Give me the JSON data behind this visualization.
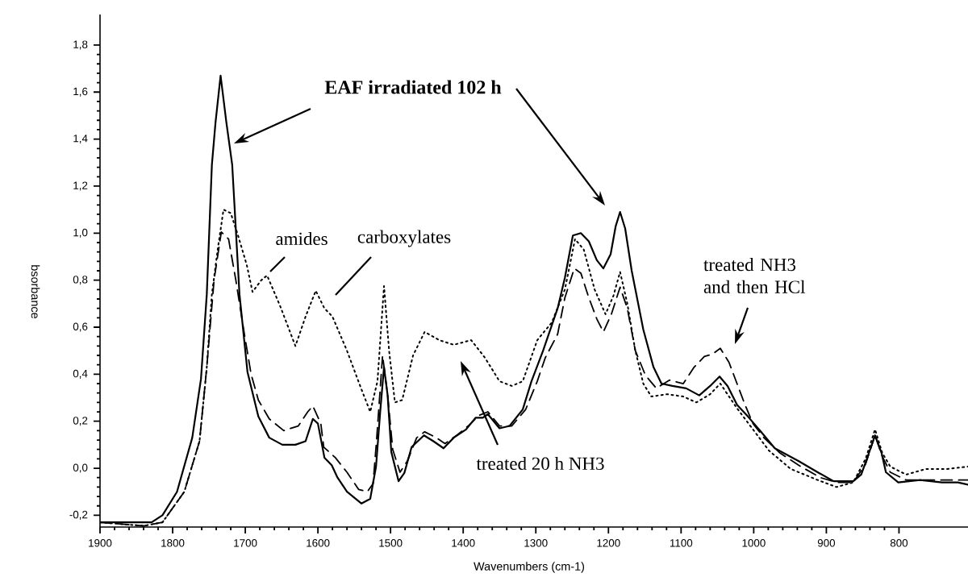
{
  "chart_data": {
    "type": "line",
    "xlabel": "Wavenumbers (cm-1)",
    "ylabel": "bsorbance",
    "annotations": [
      "EAF irradiated 102 h",
      "amides",
      "carboxylates",
      "treated 20 h NH3",
      "treated NH3 and then HCl"
    ],
    "xlim": [
      1900,
      705
    ],
    "xticks": [
      1900,
      1800,
      1700,
      1600,
      1500,
      1400,
      1300,
      1200,
      1100,
      1000,
      900,
      800
    ],
    "ylim": [
      -0.25,
      1.93
    ],
    "yticks": [
      {
        "value": -0.2,
        "label": "-0,2"
      },
      {
        "value": 0,
        "label": "0,0"
      },
      {
        "value": 0.2,
        "label": "0,2"
      },
      {
        "value": 0.4,
        "label": "0,4"
      },
      {
        "value": 0.6,
        "label": "0,6"
      },
      {
        "value": 0.8,
        "label": "0,8"
      },
      {
        "value": 1.0,
        "label": "1,0"
      },
      {
        "value": 1.2,
        "label": "1,2"
      },
      {
        "value": 1.4,
        "label": "1,4"
      },
      {
        "value": 1.6,
        "label": "1,6"
      },
      {
        "value": 1.8,
        "label": "1,8"
      }
    ],
    "series": [
      {
        "color": "#000000",
        "line_style": "solid",
        "x": [
          1900,
          1829,
          1814,
          1794,
          1773,
          1761,
          1753,
          1746,
          1741,
          1734,
          1726,
          1718,
          1708,
          1697,
          1682,
          1667,
          1649,
          1631,
          1617,
          1607,
          1600,
          1591,
          1581,
          1573,
          1560,
          1540,
          1528,
          1520,
          1514,
          1509,
          1504,
          1499,
          1489,
          1481,
          1471,
          1454,
          1441,
          1427,
          1413,
          1396,
          1383,
          1373,
          1366,
          1350,
          1336,
          1318,
          1306,
          1290,
          1270,
          1260,
          1249,
          1238,
          1227,
          1216,
          1207,
          1197,
          1190,
          1184,
          1177,
          1168,
          1152,
          1138,
          1127,
          1112,
          1093,
          1075,
          1060,
          1047,
          1036,
          1023,
          1008,
          990,
          971,
          938,
          912,
          890,
          863,
          852,
          843,
          833,
          824,
          818,
          801,
          771,
          741,
          719,
          705
        ],
        "values": [
          -0.23,
          -0.23,
          -0.2,
          -0.1,
          0.13,
          0.38,
          0.74,
          1.29,
          1.47,
          1.67,
          1.47,
          1.29,
          0.74,
          0.41,
          0.22,
          0.13,
          0.1,
          0.1,
          0.115,
          0.21,
          0.19,
          0.045,
          0.013,
          -0.04,
          -0.1,
          -0.15,
          -0.13,
          0.007,
          0.25,
          0.43,
          0.31,
          0.07,
          -0.055,
          -0.02,
          0.09,
          0.14,
          0.115,
          0.085,
          0.13,
          0.165,
          0.215,
          0.215,
          0.23,
          0.17,
          0.18,
          0.25,
          0.37,
          0.5,
          0.68,
          0.81,
          0.99,
          1.0,
          0.965,
          0.885,
          0.85,
          0.91,
          1.03,
          1.09,
          1.02,
          0.84,
          0.59,
          0.43,
          0.36,
          0.35,
          0.34,
          0.31,
          0.35,
          0.39,
          0.35,
          0.27,
          0.22,
          0.155,
          0.085,
          0.03,
          -0.017,
          -0.055,
          -0.055,
          -0.027,
          0.05,
          0.14,
          0.065,
          -0.017,
          -0.06,
          -0.05,
          -0.06,
          -0.06,
          -0.07
        ]
      },
      {
        "color": "#000000",
        "line_style": "dotted",
        "x": [
          1900,
          1840,
          1814,
          1784,
          1763,
          1753,
          1746,
          1738,
          1730,
          1720,
          1710,
          1698,
          1690,
          1678,
          1670,
          1652,
          1631,
          1617,
          1603,
          1591,
          1580,
          1560,
          1540,
          1528,
          1518,
          1509,
          1502,
          1494,
          1484,
          1469,
          1453,
          1433,
          1413,
          1389,
          1370,
          1350,
          1333,
          1318,
          1298,
          1278,
          1260,
          1246,
          1234,
          1219,
          1204,
          1193,
          1184,
          1174,
          1163,
          1152,
          1141,
          1119,
          1097,
          1079,
          1060,
          1046,
          1023,
          1001,
          979,
          949,
          912,
          886,
          863,
          846,
          833,
          823,
          812,
          790,
          763,
          734,
          705
        ],
        "values": [
          -0.23,
          -0.245,
          -0.23,
          -0.1,
          0.115,
          0.43,
          0.74,
          0.93,
          1.1,
          1.085,
          0.99,
          0.865,
          0.75,
          0.8,
          0.82,
          0.69,
          0.52,
          0.645,
          0.755,
          0.68,
          0.645,
          0.5,
          0.335,
          0.24,
          0.37,
          0.775,
          0.5,
          0.28,
          0.29,
          0.48,
          0.58,
          0.545,
          0.525,
          0.545,
          0.47,
          0.37,
          0.35,
          0.37,
          0.545,
          0.62,
          0.76,
          0.975,
          0.93,
          0.76,
          0.655,
          0.735,
          0.835,
          0.7,
          0.5,
          0.36,
          0.305,
          0.315,
          0.305,
          0.28,
          0.315,
          0.36,
          0.255,
          0.165,
          0.075,
          -0.003,
          -0.05,
          -0.08,
          -0.06,
          0.04,
          0.165,
          0.065,
          0.007,
          -0.027,
          -0.003,
          -0.003,
          0.007
        ]
      },
      {
        "color": "#000000",
        "line_style": "dashed",
        "x": [
          1900,
          1840,
          1814,
          1784,
          1763,
          1753,
          1743,
          1733,
          1723,
          1713,
          1702,
          1692,
          1682,
          1667,
          1647,
          1627,
          1614,
          1607,
          1596,
          1592,
          1576,
          1560,
          1544,
          1532,
          1524,
          1519,
          1511,
          1504,
          1497,
          1487,
          1477,
          1464,
          1453,
          1437,
          1425,
          1409,
          1393,
          1378,
          1366,
          1350,
          1333,
          1314,
          1298,
          1287,
          1270,
          1260,
          1247,
          1238,
          1227,
          1216,
          1207,
          1196,
          1184,
          1174,
          1163,
          1149,
          1134,
          1116,
          1097,
          1082,
          1068,
          1057,
          1046,
          1034,
          1023,
          1012,
          1001,
          986,
          964,
          935,
          908,
          886,
          863,
          846,
          833,
          823,
          812,
          790,
          757,
          727,
          705
        ],
        "values": [
          -0.23,
          -0.245,
          -0.23,
          -0.1,
          0.115,
          0.43,
          0.8,
          1.005,
          0.975,
          0.8,
          0.585,
          0.4,
          0.29,
          0.21,
          0.16,
          0.18,
          0.24,
          0.265,
          0.19,
          0.09,
          0.045,
          -0.017,
          -0.09,
          -0.1,
          -0.065,
          0.13,
          0.48,
          0.31,
          0.08,
          -0.017,
          0.03,
          0.13,
          0.155,
          0.13,
          0.105,
          0.14,
          0.18,
          0.225,
          0.24,
          0.18,
          0.18,
          0.25,
          0.37,
          0.47,
          0.57,
          0.725,
          0.85,
          0.83,
          0.725,
          0.635,
          0.58,
          0.655,
          0.77,
          0.68,
          0.5,
          0.395,
          0.34,
          0.375,
          0.36,
          0.43,
          0.475,
          0.485,
          0.51,
          0.45,
          0.36,
          0.27,
          0.19,
          0.13,
          0.065,
          0.007,
          -0.04,
          -0.06,
          -0.06,
          0.017,
          0.14,
          0.05,
          -0.017,
          -0.05,
          -0.05,
          -0.05,
          -0.05
        ]
      }
    ]
  }
}
